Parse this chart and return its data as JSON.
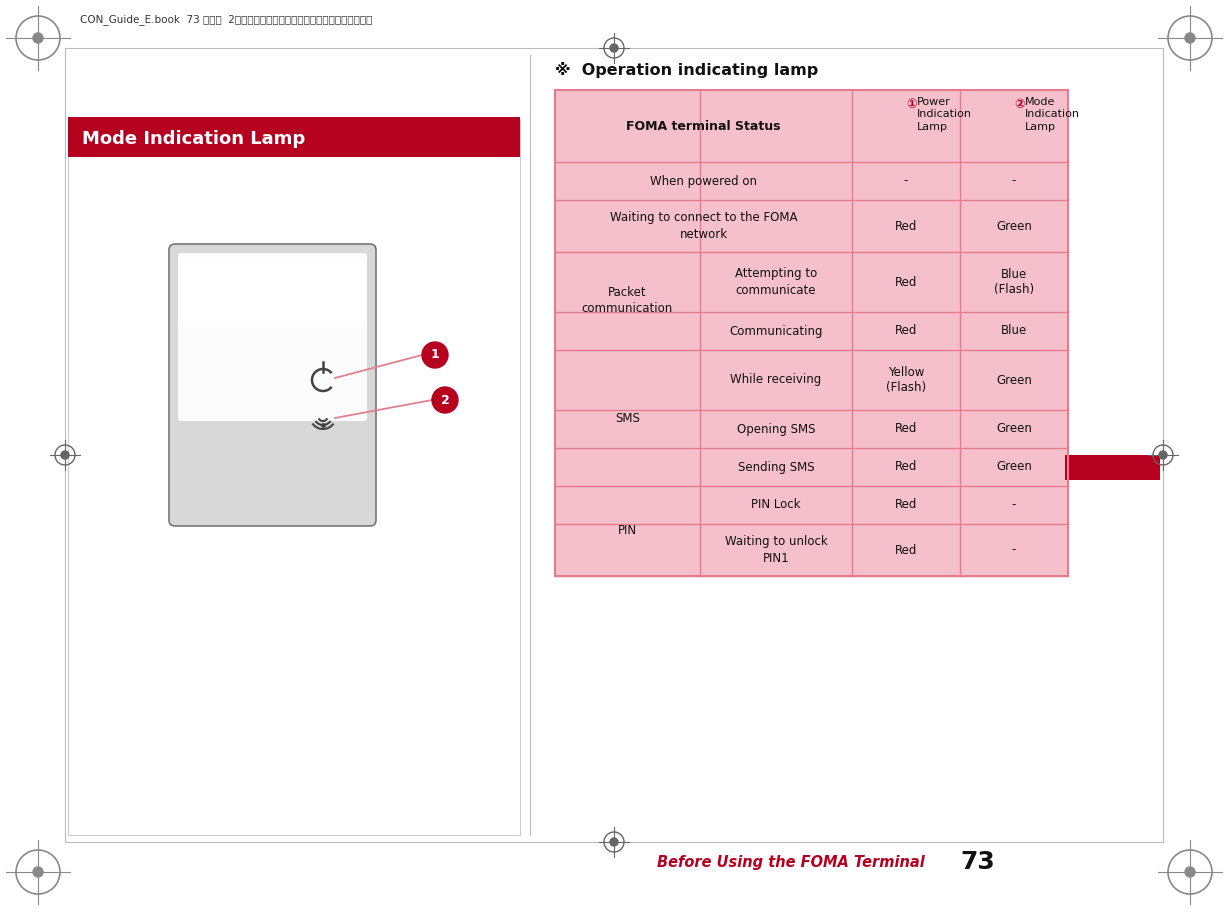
{
  "page_bg": "#ffffff",
  "header_text": "CON_Guide_E.book　　 73 ページ　　 2008年11月26日　水曜日　午後6時43分",
  "section_title": "※  Operation indicating lamp",
  "left_box_title": "Mode Indication Lamp",
  "left_box_title_bg": "#b50020",
  "footer_text": "Before Using the FOMA Terminal",
  "footer_number": "73",
  "footer_color": "#b50020",
  "red_block_color": "#b50020",
  "table_border_color": "#e87a90",
  "table_header_bg": "#f5c0cc",
  "col_status": "FOMA terminal Status",
  "rows": [
    {
      "cat": "When powered on",
      "sub": "",
      "power": "-",
      "mode": "-",
      "span_cat": true
    },
    {
      "cat": "Waiting to connect to the FOMA\nnetwork",
      "sub": "",
      "power": "Red",
      "mode": "Green",
      "span_cat": true
    },
    {
      "cat": "Packet\ncommunication",
      "sub": "Attempting to\ncommunicate",
      "power": "Red",
      "mode": "Blue\n(Flash)",
      "span_cat": false
    },
    {
      "cat": "",
      "sub": "Communicating",
      "power": "Red",
      "mode": "Blue",
      "span_cat": false
    },
    {
      "cat": "SMS",
      "sub": "While receiving",
      "power": "Yellow\n(Flash)",
      "mode": "Green",
      "span_cat": false
    },
    {
      "cat": "",
      "sub": "Opening SMS",
      "power": "Red",
      "mode": "Green",
      "span_cat": false
    },
    {
      "cat": "",
      "sub": "Sending SMS",
      "power": "Red",
      "mode": "Green",
      "span_cat": false
    },
    {
      "cat": "PIN",
      "sub": "PIN Lock",
      "power": "Red",
      "mode": "-",
      "span_cat": false
    },
    {
      "cat": "",
      "sub": "Waiting to unlock\nPIN1",
      "power": "Red",
      "mode": "-",
      "span_cat": false
    }
  ]
}
